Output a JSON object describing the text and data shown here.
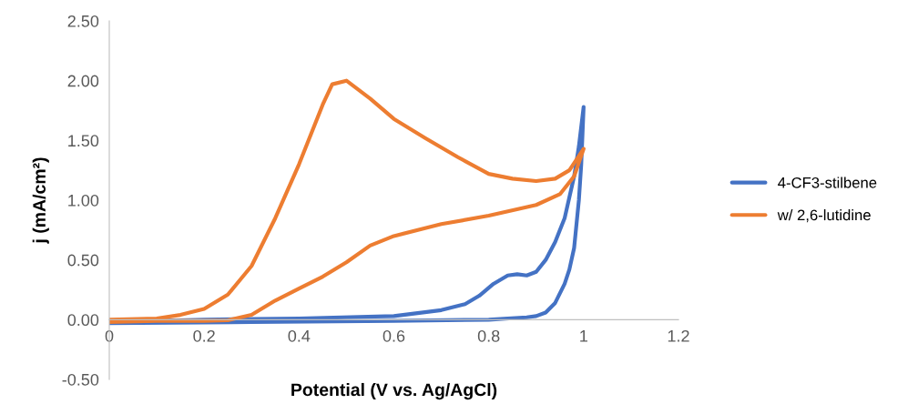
{
  "chart_data": {
    "type": "line",
    "xlabel": "Potential (V vs. Ag/AgCl)",
    "ylabel": "j (mA/cm²)",
    "xlim": [
      0,
      1.2
    ],
    "xticks": [
      0,
      0.2,
      0.4,
      0.6,
      0.8,
      1,
      1.2
    ],
    "ylim": [
      -0.5,
      2.5
    ],
    "yticks": [
      {
        "value": -0.5,
        "label": "-0.50"
      },
      {
        "value": 0,
        "label": "0.00"
      },
      {
        "value": 0.5,
        "label": "0.50"
      },
      {
        "value": 1,
        "label": "1.00"
      },
      {
        "value": 1.5,
        "label": "1.50"
      },
      {
        "value": 2,
        "label": "2.00"
      },
      {
        "value": 2.5,
        "label": "2.50"
      }
    ],
    "grid": false,
    "legend": "right",
    "marker": "none",
    "line_style": "solid",
    "series": [
      {
        "name": "4-CF3-stilbene",
        "color": "#4472c4",
        "x": [
          0,
          0.2,
          0.4,
          0.6,
          0.7,
          0.75,
          0.78,
          0.81,
          0.84,
          0.86,
          0.88,
          0.9,
          0.92,
          0.94,
          0.96,
          0.98,
          0.99,
          1,
          0.995,
          0.99,
          0.98,
          0.97,
          0.96,
          0.94,
          0.92,
          0.9,
          0.88,
          0.8,
          0.6,
          0.3,
          0
        ],
        "values": [
          -0.02,
          0.0,
          0.01,
          0.03,
          0.08,
          0.13,
          0.2,
          0.3,
          0.37,
          0.38,
          0.37,
          0.4,
          0.5,
          0.65,
          0.85,
          1.2,
          1.45,
          1.78,
          1.3,
          1.0,
          0.6,
          0.42,
          0.3,
          0.14,
          0.06,
          0.03,
          0.02,
          0.0,
          -0.01,
          -0.02,
          -0.03
        ]
      },
      {
        "name": "w/ 2,6-lutidine",
        "color": "#ed7d31",
        "x": [
          0,
          0.1,
          0.2,
          0.25,
          0.3,
          0.35,
          0.4,
          0.45,
          0.5,
          0.55,
          0.6,
          0.7,
          0.8,
          0.9,
          0.95,
          0.98,
          1,
          0.97,
          0.94,
          0.9,
          0.85,
          0.8,
          0.735,
          0.666,
          0.6,
          0.55,
          0.5,
          0.47,
          0.45,
          0.4,
          0.35,
          0.3,
          0.25,
          0.2,
          0.15,
          0.1,
          0
        ],
        "values": [
          -0.02,
          -0.01,
          -0.01,
          -0.005,
          0.04,
          0.16,
          0.26,
          0.36,
          0.48,
          0.62,
          0.7,
          0.8,
          0.87,
          0.96,
          1.05,
          1.2,
          1.43,
          1.25,
          1.18,
          1.16,
          1.18,
          1.22,
          1.36,
          1.52,
          1.68,
          1.85,
          2.0,
          1.97,
          1.8,
          1.3,
          0.85,
          0.45,
          0.21,
          0.09,
          0.04,
          0.01,
          0.0
        ]
      }
    ]
  }
}
